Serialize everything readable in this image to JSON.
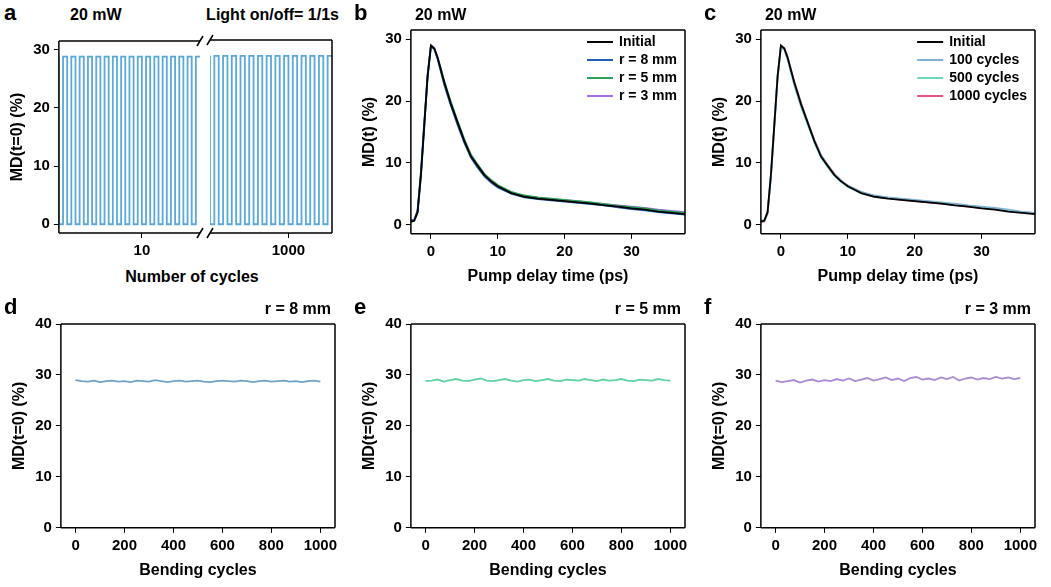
{
  "chart_data": [
    {
      "panel": "a",
      "type": "line",
      "line_style": "steps",
      "color": "#5aa9d9",
      "title": "20 mW",
      "annotation": "Light on/off= 1/1s",
      "xlabel": "Number of cycles",
      "ylabel": "MD(t=0) (%)",
      "ylim": [
        -1.5,
        31.5
      ],
      "yticks": [
        0,
        10,
        20,
        30
      ],
      "grid": false,
      "segments": [
        {
          "xlim": [
            0,
            17
          ],
          "xticks": [
            10
          ],
          "x": [
            0,
            0.5,
            1,
            1.5,
            2,
            2.5,
            3,
            3.5,
            4,
            4.5,
            5,
            5.5,
            6,
            6.5,
            7,
            7.5,
            8,
            8.5,
            9,
            9.5,
            10,
            10.5,
            11,
            11.5,
            12,
            12.5,
            13,
            13.5,
            14,
            14.5,
            15,
            15.5,
            16,
            16.5,
            17
          ],
          "values": [
            28.8,
            0,
            28.8,
            0,
            28.8,
            0,
            28.8,
            0,
            28.8,
            0,
            28.8,
            0,
            28.8,
            0,
            28.8,
            0,
            28.8,
            0,
            28.8,
            0,
            28.8,
            0,
            28.8,
            0,
            28.8,
            0,
            28.8,
            0,
            28.8,
            0,
            28.8,
            0,
            28.8,
            0,
            28.8
          ]
        },
        {
          "xlim": [
            991,
            1005
          ],
          "xticks": [
            1000
          ],
          "x": [
            991,
            991.5,
            992,
            992.5,
            993,
            993.5,
            994,
            994.5,
            995,
            995.5,
            996,
            996.5,
            997,
            997.5,
            998,
            998.5,
            999,
            999.5,
            1000,
            1000.5,
            1001,
            1001.5,
            1002,
            1002.5,
            1003,
            1003.5,
            1004,
            1004.5,
            1005
          ],
          "values": [
            28.8,
            0,
            28.8,
            0,
            28.8,
            0,
            28.8,
            0,
            28.8,
            0,
            28.8,
            0,
            28.8,
            0,
            28.8,
            0,
            28.8,
            0,
            28.8,
            0,
            28.8,
            0,
            28.8,
            0,
            28.8,
            0,
            28.8,
            0,
            28.8
          ]
        }
      ]
    },
    {
      "panel": "b",
      "type": "line",
      "title": "20 mW",
      "xlabel": "Pump delay time (ps)",
      "ylabel": "MD(t) (%)",
      "xlim": [
        -3,
        38
      ],
      "xticks": [
        0,
        10,
        20,
        30
      ],
      "ylim": [
        -1.5,
        31.5
      ],
      "yticks": [
        0,
        10,
        20,
        30
      ],
      "grid": false,
      "legend": "upper right",
      "x": [
        -3,
        -2.5,
        -2,
        -1.5,
        -1,
        -0.5,
        0,
        0.5,
        1,
        1.5,
        2,
        3,
        4,
        5,
        6,
        7,
        8,
        9,
        10,
        12,
        14,
        16,
        18,
        20,
        22,
        24,
        26,
        28,
        30,
        32,
        34,
        36,
        38
      ],
      "series": [
        {
          "name": "Initial",
          "color": "#000000",
          "values": [
            0.5,
            0.6,
            2.0,
            8.0,
            16.0,
            24.0,
            29.0,
            28.5,
            27.0,
            25.0,
            23.0,
            19.5,
            16.5,
            13.5,
            11.0,
            9.5,
            8.0,
            7.0,
            6.2,
            5.1,
            4.5,
            4.2,
            4.0,
            3.8,
            3.6,
            3.4,
            3.1,
            2.9,
            2.6,
            2.4,
            2.1,
            1.9,
            1.7
          ]
        },
        {
          "name": "r = 8 mm",
          "color": "#1f5fb4",
          "values": [
            0.6,
            0.7,
            2.2,
            8.5,
            16.5,
            24.3,
            28.9,
            28.4,
            26.8,
            24.7,
            22.6,
            19.2,
            16.1,
            13.2,
            10.8,
            9.2,
            7.8,
            6.8,
            6.0,
            5.0,
            4.4,
            4.1,
            3.9,
            3.7,
            3.5,
            3.3,
            3.1,
            2.8,
            2.5,
            2.3,
            2.0,
            1.8,
            1.6
          ]
        },
        {
          "name": "r = 5 mm",
          "color": "#2ea05a",
          "values": [
            0.4,
            0.6,
            1.9,
            7.8,
            15.8,
            23.8,
            28.8,
            28.5,
            27.1,
            25.2,
            23.2,
            19.8,
            16.7,
            13.8,
            11.3,
            9.7,
            8.2,
            7.2,
            6.4,
            5.3,
            4.7,
            4.4,
            4.2,
            4.0,
            3.8,
            3.6,
            3.3,
            3.0,
            2.8,
            2.6,
            2.3,
            2.1,
            1.9
          ]
        },
        {
          "name": "r = 3 mm",
          "color": "#a070e0",
          "values": [
            0.7,
            0.8,
            2.3,
            8.2,
            16.2,
            24.1,
            29.0,
            28.6,
            27.0,
            24.9,
            22.9,
            19.4,
            16.3,
            13.4,
            11.1,
            9.5,
            8.1,
            7.1,
            6.3,
            5.2,
            4.6,
            4.3,
            4.1,
            3.9,
            3.8,
            3.5,
            3.3,
            3.1,
            2.9,
            2.7,
            2.4,
            2.2,
            2.0
          ]
        }
      ]
    },
    {
      "panel": "c",
      "type": "line",
      "title": "20 mW",
      "xlabel": "Pump delay time (ps)",
      "ylabel": "MD(t) (%)",
      "xlim": [
        -3,
        38
      ],
      "xticks": [
        0,
        10,
        20,
        30
      ],
      "ylim": [
        -1.5,
        31.5
      ],
      "yticks": [
        0,
        10,
        20,
        30
      ],
      "grid": false,
      "legend": "upper right",
      "x": [
        -3,
        -2.5,
        -2,
        -1.5,
        -1,
        -0.5,
        0,
        0.5,
        1,
        1.5,
        2,
        3,
        4,
        5,
        6,
        7,
        8,
        9,
        10,
        12,
        14,
        16,
        18,
        20,
        22,
        24,
        26,
        28,
        30,
        32,
        34,
        36,
        38
      ],
      "series": [
        {
          "name": "Initial",
          "color": "#000000",
          "values": [
            0.5,
            0.6,
            2.0,
            8.0,
            16.0,
            24.0,
            29.0,
            28.5,
            27.0,
            25.0,
            23.0,
            19.5,
            16.5,
            13.5,
            11.0,
            9.5,
            8.0,
            7.0,
            6.2,
            5.1,
            4.5,
            4.2,
            4.0,
            3.8,
            3.6,
            3.4,
            3.1,
            2.9,
            2.6,
            2.4,
            2.1,
            1.9,
            1.7
          ]
        },
        {
          "name": "100 cycles",
          "color": "#7fb2d4",
          "values": [
            0.6,
            0.7,
            2.1,
            8.3,
            16.4,
            24.2,
            28.9,
            28.5,
            26.9,
            24.8,
            22.8,
            19.6,
            16.6,
            13.6,
            11.2,
            9.6,
            8.1,
            7.1,
            6.3,
            5.3,
            4.7,
            4.4,
            4.2,
            4.0,
            3.8,
            3.6,
            3.4,
            3.1,
            2.9,
            2.7,
            2.4,
            2.1,
            1.9
          ]
        },
        {
          "name": "500 cycles",
          "color": "#6ad9c0",
          "values": [
            0.5,
            0.6,
            1.9,
            7.9,
            15.9,
            23.9,
            28.8,
            28.3,
            26.7,
            24.6,
            22.5,
            19.1,
            16.2,
            13.3,
            10.9,
            9.3,
            7.9,
            6.9,
            6.1,
            5.1,
            4.5,
            4.3,
            4.1,
            3.9,
            3.7,
            3.5,
            3.2,
            3.0,
            2.8,
            2.5,
            2.3,
            2.0,
            1.8
          ]
        },
        {
          "name": "1000 cycles",
          "color": "#e8527e",
          "values": [
            0.4,
            0.5,
            1.8,
            7.7,
            15.7,
            23.7,
            28.9,
            28.6,
            27.2,
            25.1,
            23.1,
            19.7,
            16.6,
            13.7,
            11.2,
            9.6,
            8.2,
            7.1,
            6.3,
            5.2,
            4.6,
            4.3,
            4.0,
            3.8,
            3.6,
            3.4,
            3.2,
            2.9,
            2.7,
            2.5,
            2.2,
            2.0,
            1.8
          ]
        }
      ]
    },
    {
      "panel": "d",
      "type": "line",
      "title": "r = 8 mm",
      "color": "#6fa4c8",
      "xlabel": "Bending cycles",
      "ylabel": "MD(t=0) (%)",
      "xlim": [
        -60,
        1060
      ],
      "xticks": [
        0,
        200,
        400,
        600,
        800,
        1000
      ],
      "ylim": [
        0,
        40
      ],
      "yticks": [
        0,
        10,
        20,
        30,
        40
      ],
      "grid": false,
      "x": [
        0,
        25,
        50,
        75,
        100,
        125,
        150,
        175,
        200,
        225,
        250,
        275,
        300,
        325,
        350,
        375,
        400,
        425,
        450,
        475,
        500,
        525,
        550,
        575,
        600,
        625,
        650,
        675,
        700,
        725,
        750,
        775,
        800,
        825,
        850,
        875,
        900,
        925,
        950,
        975,
        1000
      ],
      "values": [
        29.0,
        28.8,
        28.7,
        28.9,
        28.6,
        28.8,
        28.9,
        28.7,
        28.8,
        28.6,
        28.9,
        28.8,
        28.7,
        29.0,
        28.8,
        28.6,
        28.8,
        28.9,
        28.7,
        28.8,
        28.9,
        28.7,
        28.6,
        28.8,
        28.9,
        28.8,
        28.7,
        28.9,
        28.8,
        28.6,
        28.8,
        28.9,
        28.7,
        28.8,
        28.9,
        28.7,
        28.8,
        28.6,
        28.8,
        28.9,
        28.7
      ]
    },
    {
      "panel": "e",
      "type": "line",
      "title": "r = 5 mm",
      "color": "#5fd3a5",
      "xlabel": "Bending cycles",
      "ylabel": "MD(t=0) (%)",
      "xlim": [
        -60,
        1060
      ],
      "xticks": [
        0,
        200,
        400,
        600,
        800,
        1000
      ],
      "ylim": [
        0,
        40
      ],
      "yticks": [
        0,
        10,
        20,
        30,
        40
      ],
      "grid": false,
      "x": [
        0,
        25,
        50,
        75,
        100,
        125,
        150,
        175,
        200,
        225,
        250,
        275,
        300,
        325,
        350,
        375,
        400,
        425,
        450,
        475,
        500,
        525,
        550,
        575,
        600,
        625,
        650,
        675,
        700,
        725,
        750,
        775,
        800,
        825,
        850,
        875,
        900,
        925,
        950,
        975,
        1000
      ],
      "values": [
        28.8,
        28.9,
        29.1,
        28.7,
        29.0,
        29.2,
        28.9,
        28.8,
        29.1,
        29.3,
        28.9,
        28.8,
        29.0,
        29.2,
        28.9,
        28.7,
        29.0,
        29.1,
        28.8,
        29.0,
        29.2,
        28.9,
        28.8,
        29.1,
        29.0,
        28.9,
        29.2,
        29.0,
        28.8,
        29.1,
        28.9,
        29.0,
        29.2,
        28.9,
        28.8,
        29.1,
        29.0,
        28.9,
        29.2,
        29.0,
        28.9
      ]
    },
    {
      "panel": "f",
      "type": "line",
      "title": "r = 3 mm",
      "color": "#a98bd6",
      "xlabel": "Bending cycles",
      "ylabel": "MD(t=0) (%)",
      "xlim": [
        -60,
        1060
      ],
      "xticks": [
        0,
        200,
        400,
        600,
        800,
        1000
      ],
      "ylim": [
        0,
        40
      ],
      "yticks": [
        0,
        10,
        20,
        30,
        40
      ],
      "grid": false,
      "x": [
        0,
        25,
        50,
        75,
        100,
        125,
        150,
        175,
        200,
        225,
        250,
        275,
        300,
        325,
        350,
        375,
        400,
        425,
        450,
        475,
        500,
        525,
        550,
        575,
        600,
        625,
        650,
        675,
        700,
        725,
        750,
        775,
        800,
        825,
        850,
        875,
        900,
        925,
        950,
        975,
        1000
      ],
      "values": [
        28.9,
        28.6,
        28.8,
        29.0,
        28.5,
        28.9,
        29.1,
        28.7,
        29.0,
        28.8,
        29.2,
        28.9,
        29.3,
        28.8,
        29.1,
        29.4,
        28.9,
        29.2,
        29.5,
        29.0,
        29.3,
        28.8,
        29.4,
        29.6,
        29.1,
        29.3,
        29.0,
        29.5,
        29.2,
        29.6,
        28.9,
        29.3,
        29.5,
        29.1,
        29.4,
        29.2,
        29.6,
        29.3,
        29.5,
        29.2,
        29.4
      ]
    }
  ]
}
